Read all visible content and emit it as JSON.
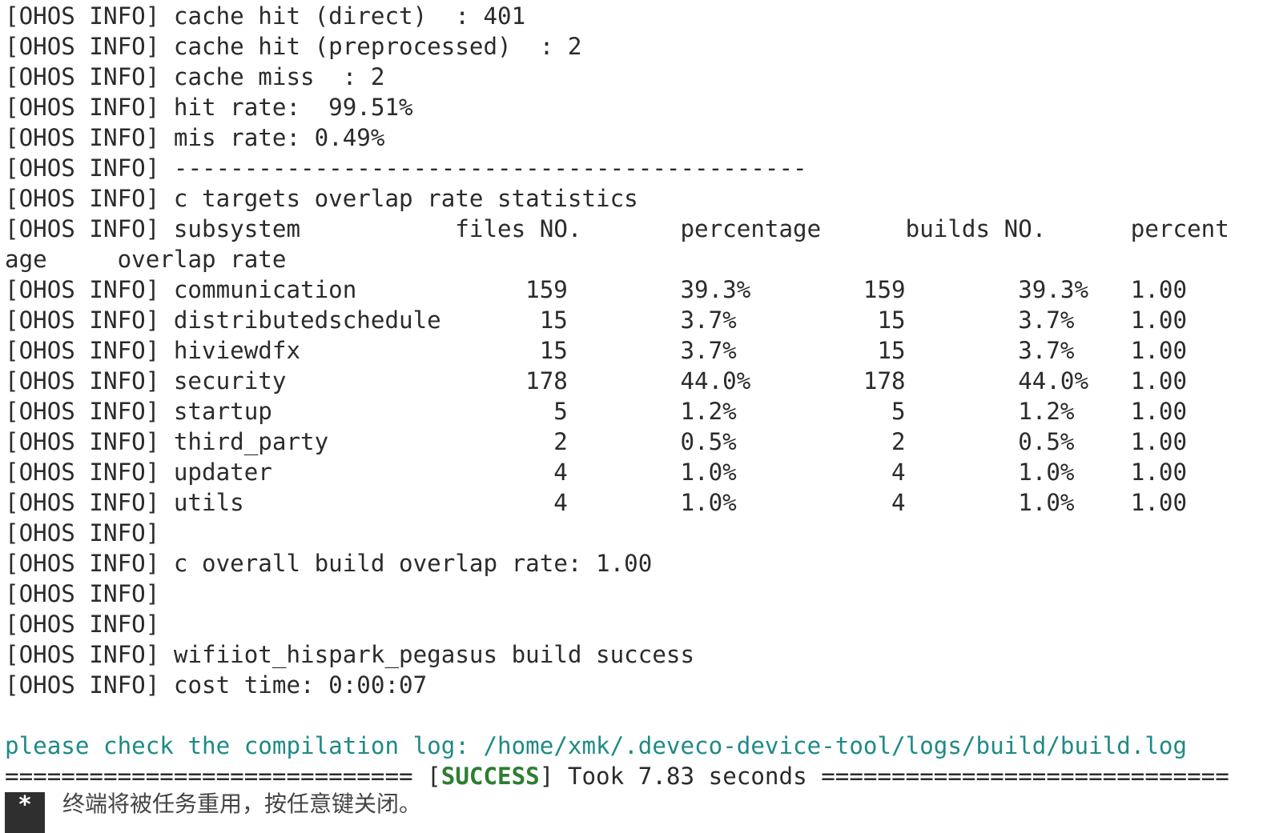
{
  "log": {
    "lines_before": [
      "[OHOS INFO] cache hit (direct)  : 401",
      "[OHOS INFO] cache hit (preprocessed)  : 2",
      "[OHOS INFO] cache miss  : 2",
      "[OHOS INFO] hit rate:  99.51%",
      "[OHOS INFO] mis rate: 0.49%",
      "[OHOS INFO] ---------------------------------------------",
      "[OHOS INFO] c targets overlap rate statistics"
    ],
    "table": {
      "header": [
        "[OHOS INFO]",
        "subsystem",
        "files NO.",
        "percentage",
        "builds NO.",
        "percent"
      ],
      "header_wrap": [
        "age",
        "overlap rate"
      ],
      "rows": [
        [
          "[OHOS INFO]",
          "communication",
          159,
          "39.3%",
          159,
          "39.3%",
          "1.00"
        ],
        [
          "[OHOS INFO]",
          "distributedschedule",
          15,
          "3.7%",
          15,
          "3.7%",
          "1.00"
        ],
        [
          "[OHOS INFO]",
          "hiviewdfx",
          15,
          "3.7%",
          15,
          "3.7%",
          "1.00"
        ],
        [
          "[OHOS INFO]",
          "security",
          178,
          "44.0%",
          178,
          "44.0%",
          "1.00"
        ],
        [
          "[OHOS INFO]",
          "startup",
          5,
          "1.2%",
          5,
          "1.2%",
          "1.00"
        ],
        [
          "[OHOS INFO]",
          "third_party",
          2,
          "0.5%",
          2,
          "0.5%",
          "1.00"
        ],
        [
          "[OHOS INFO]",
          "updater",
          4,
          "1.0%",
          4,
          "1.0%",
          "1.00"
        ],
        [
          "[OHOS INFO]",
          "utils",
          4,
          "1.0%",
          4,
          "1.0%",
          "1.00"
        ]
      ]
    },
    "lines_after": [
      "[OHOS INFO]",
      "[OHOS INFO] c overall build overlap rate: 1.00",
      "[OHOS INFO]",
      "[OHOS INFO]",
      "[OHOS INFO] wifiiot_hispark_pegasus build success",
      "[OHOS INFO] cost time: 0:00:07"
    ],
    "log_hint": "please check the compilation log: /home/xmk/.deveco-device-tool/logs/build/build.log",
    "result": {
      "before": "============================= [",
      "status": "SUCCESS",
      "after": "] Took 7.83 seconds ============================="
    },
    "terminal_notice": {
      "icon": "*",
      "text": "终端将被任务重用，按任意键关闭。"
    }
  }
}
